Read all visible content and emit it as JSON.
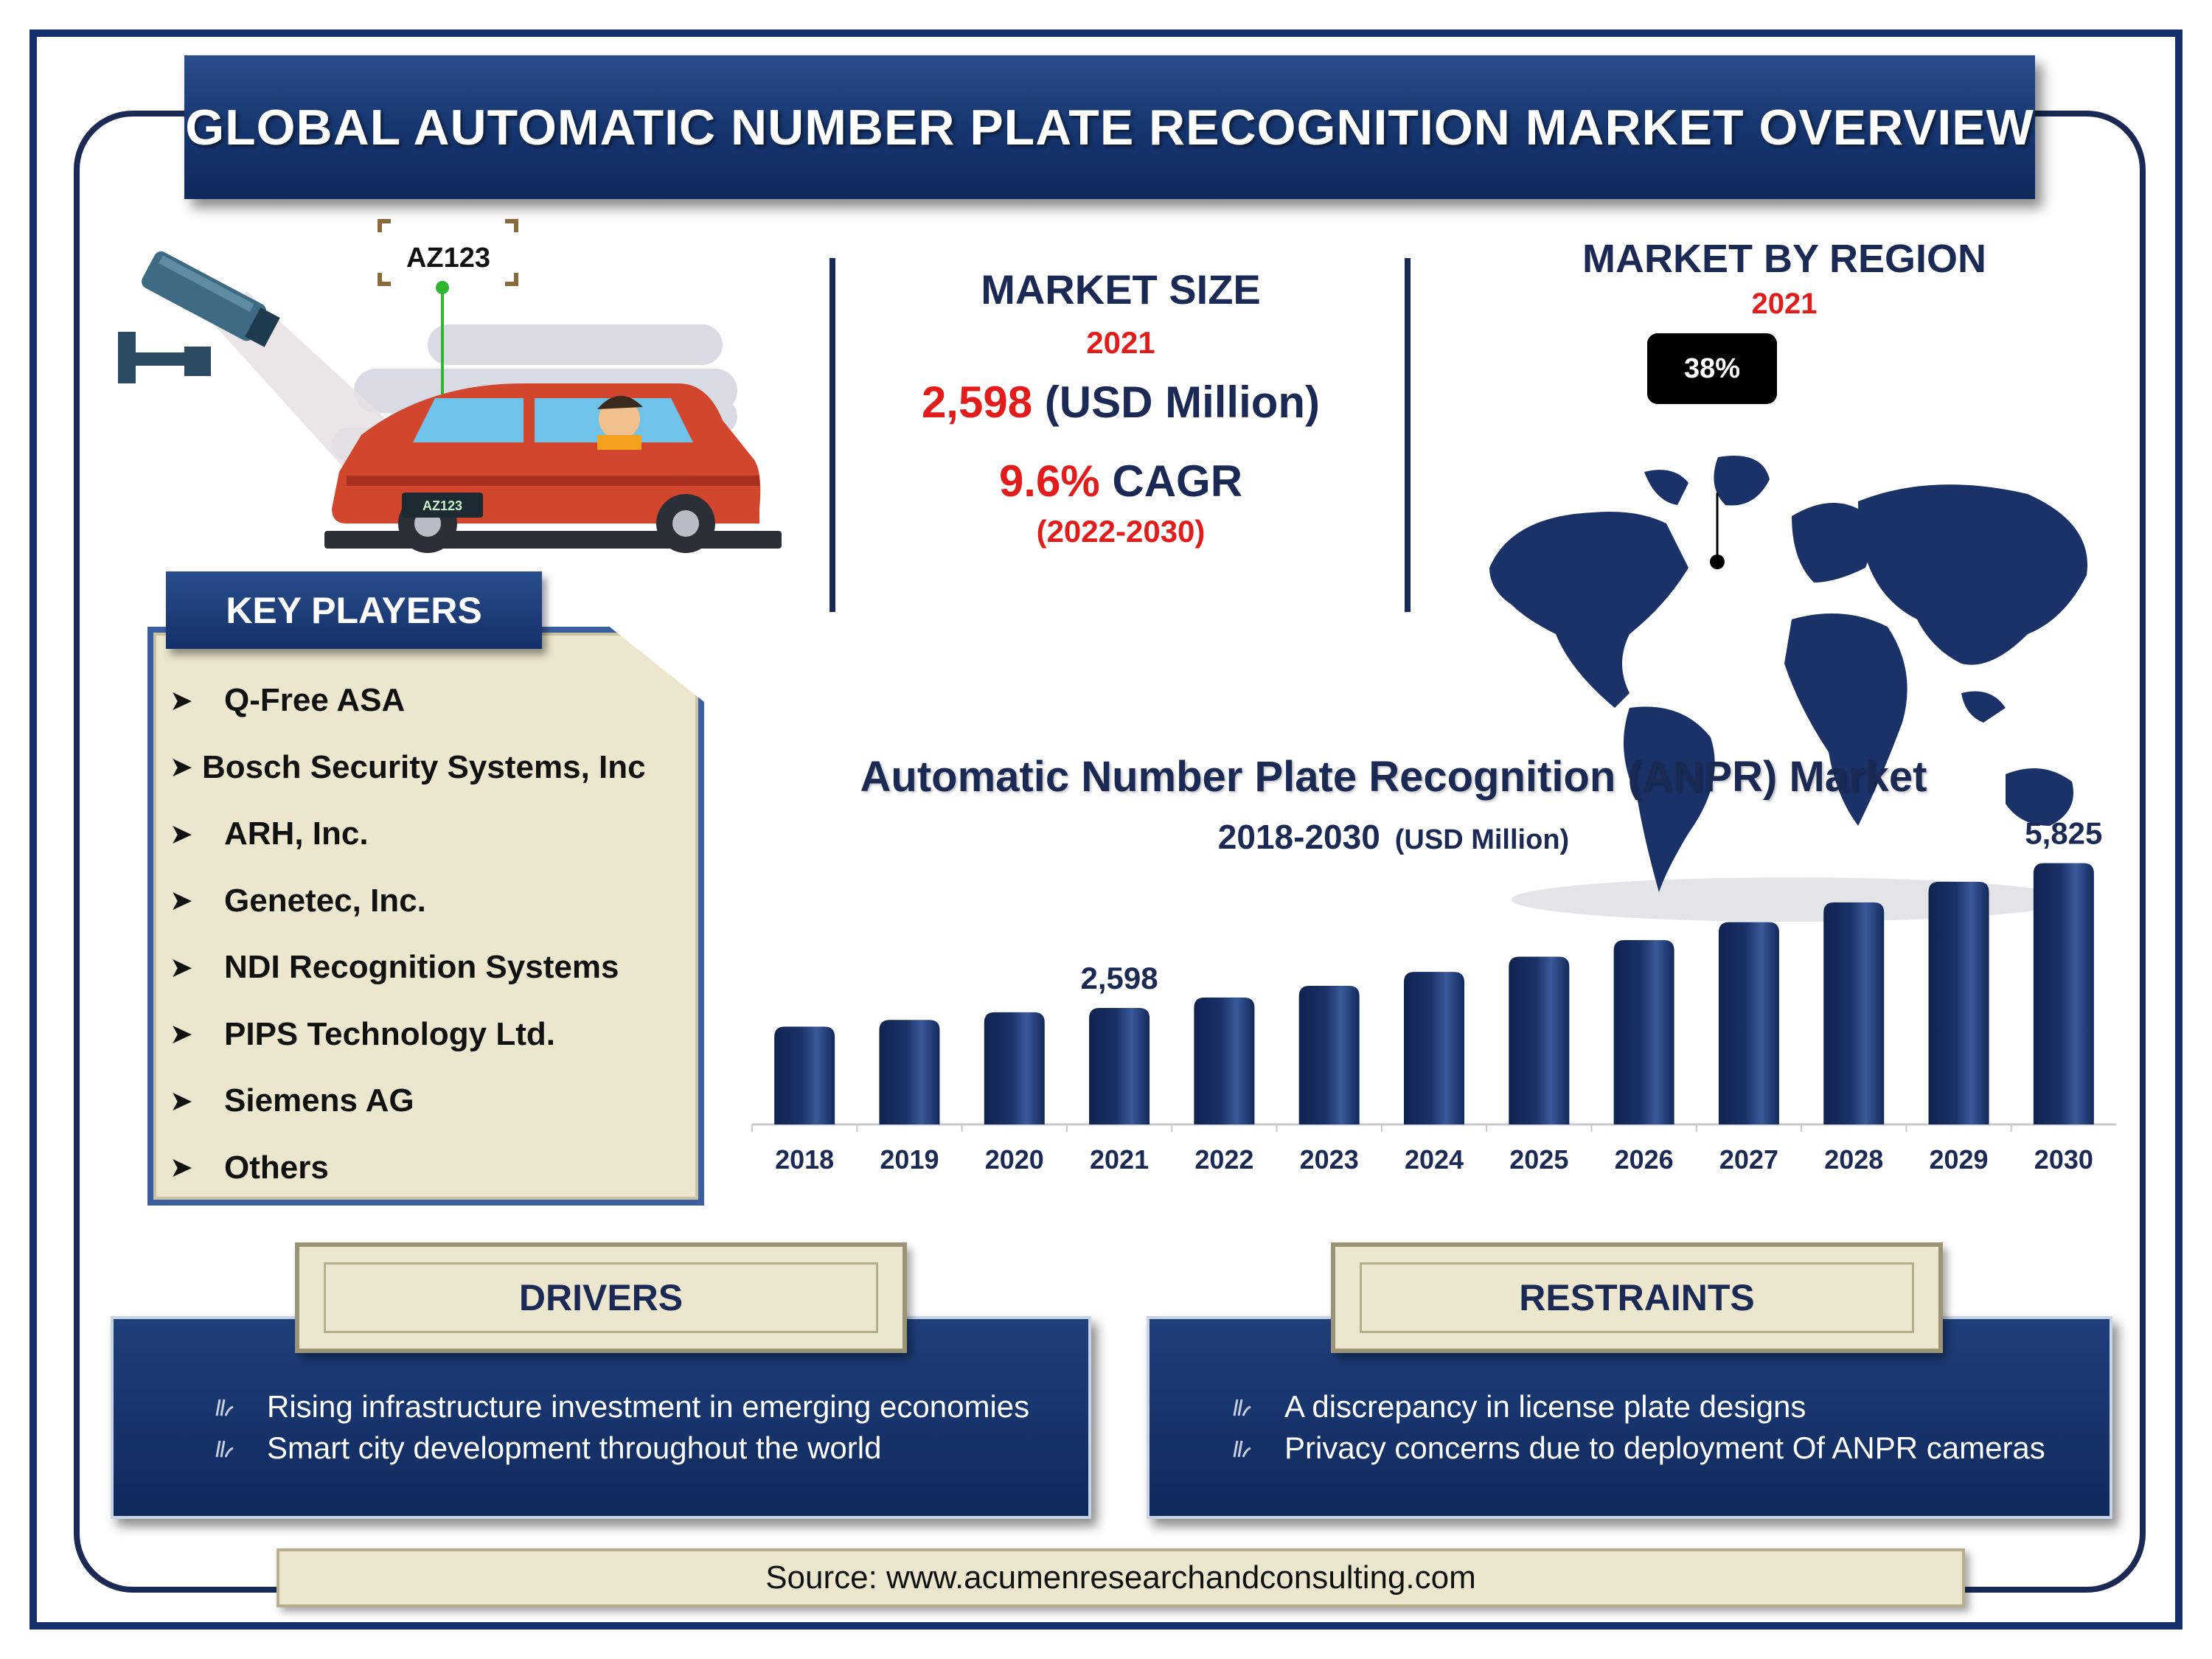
{
  "header": {
    "title": "GLOBAL AUTOMATIC NUMBER PLATE RECOGNITION MARKET OVERVIEW"
  },
  "illustration": {
    "plate_label": "AZ123",
    "car_plate_label": "AZ123"
  },
  "market_size": {
    "title": "MARKET SIZE",
    "year": "2021",
    "value": "2,598",
    "unit": "(USD Million)",
    "cagr_value": "9.6%",
    "cagr_label": "CAGR",
    "cagr_range": "(2022-2030)"
  },
  "region": {
    "title": "MARKET BY REGION",
    "year": "2021",
    "share": "38%"
  },
  "key_players": {
    "title": "KEY PLAYERS",
    "items": [
      "Q-Free ASA",
      "Bosch Security Systems, Inc",
      "ARH, Inc.",
      "Genetec, Inc.",
      "NDI Recognition Systems",
      "PIPS Technology Ltd.",
      "Siemens AG",
      "Others"
    ]
  },
  "chart_data": {
    "type": "bar",
    "title": "Automatic Number Plate Recognition (ANPR) Market",
    "subtitle": "2018-2030",
    "unit": "(USD Million)",
    "categories": [
      "2018",
      "2019",
      "2020",
      "2021",
      "2022",
      "2023",
      "2024",
      "2025",
      "2026",
      "2027",
      "2028",
      "2029",
      "2030"
    ],
    "values": [
      2180,
      2330,
      2500,
      2598,
      2830,
      3090,
      3400,
      3740,
      4110,
      4510,
      4950,
      5410,
      5825
    ],
    "data_labels": [
      {
        "category": "2021",
        "text": "2,598"
      },
      {
        "category": "2030",
        "text": "5,825"
      }
    ],
    "ylim": [
      0,
      6000
    ],
    "color": "#1b3268"
  },
  "drivers": {
    "title": "DRIVERS",
    "items": [
      "Rising infrastructure investment in emerging economies",
      "Smart city development throughout the world"
    ]
  },
  "restraints": {
    "title": "RESTRAINTS",
    "items": [
      "A discrepancy in license plate designs",
      "Privacy concerns due to deployment Of ANPR cameras"
    ]
  },
  "source": {
    "text": "Source: www.acumenresearchandconsulting.com"
  },
  "colors": {
    "navy": "#1b2a55",
    "red": "#e21b1b",
    "beige": "#ece6cf"
  }
}
